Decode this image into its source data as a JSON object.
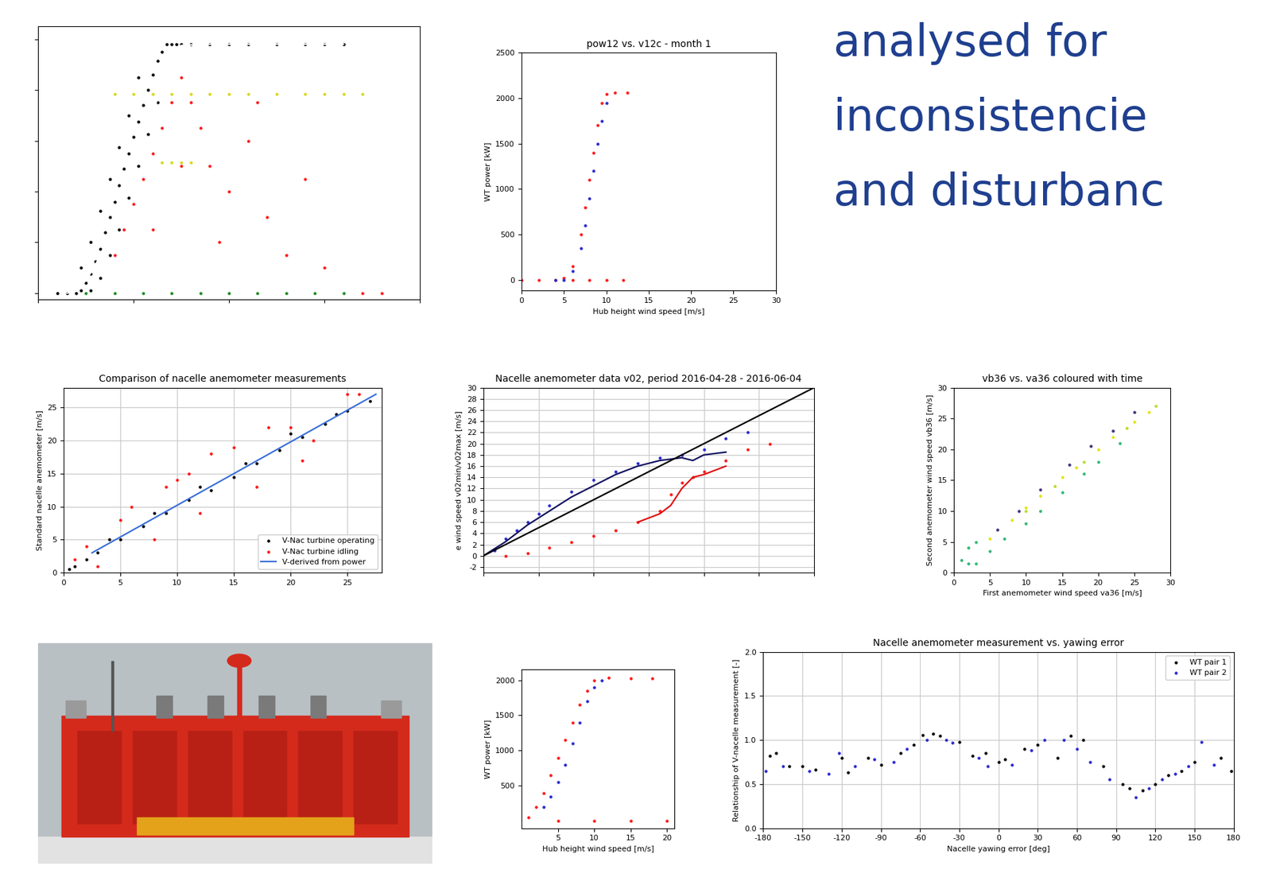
{
  "heading": [
    "analysed for",
    "inconsistencie",
    "and disturbanc"
  ],
  "chart_data": [
    {
      "type": "scatter",
      "marker": "o",
      "tick_labels": false,
      "grid": false,
      "xlim": [
        0,
        40
      ],
      "ylim": [
        -50,
        2100
      ],
      "xticks": [
        0,
        10,
        20,
        30,
        40
      ],
      "yticks": [
        0,
        400,
        800,
        1200,
        1600,
        2000
      ],
      "series": [
        {
          "color": "#000000",
          "x": [
            2,
            3,
            4,
            4.5,
            5,
            5.5,
            6,
            6.5,
            7,
            7.5,
            8,
            8.5,
            9,
            9.5,
            10,
            10.5,
            11,
            11.5,
            12,
            12.5,
            13,
            13.5,
            14,
            14.5,
            15,
            16,
            18,
            20,
            22,
            25,
            28,
            30,
            32,
            5.5,
            6.5,
            7.5,
            8.5,
            9.5,
            10.5,
            11.5,
            12.5,
            4.5,
            5.5,
            6.5,
            7.5,
            8.5,
            9.5,
            10.5
          ],
          "values": [
            0,
            0,
            0,
            20,
            80,
            150,
            250,
            350,
            480,
            600,
            720,
            850,
            980,
            1100,
            1230,
            1350,
            1480,
            1600,
            1720,
            1830,
            1900,
            1960,
            1960,
            1960,
            1960,
            1960,
            1960,
            1960,
            1960,
            1960,
            1960,
            1960,
            1960,
            20,
            120,
            300,
            500,
            750,
            1000,
            1250,
            1500,
            200,
            400,
            650,
            900,
            1150,
            1400,
            1700
          ]
        },
        {
          "color": "#ff1a1a",
          "x": [
            8,
            9,
            10,
            11,
            12,
            13,
            14,
            15,
            16,
            17,
            18,
            20,
            22,
            24,
            26,
            28,
            12,
            15,
            19,
            23,
            30,
            34,
            36
          ],
          "values": [
            300,
            500,
            700,
            900,
            1100,
            1300,
            1500,
            1700,
            1500,
            1300,
            1000,
            800,
            1200,
            600,
            300,
            900,
            500,
            1000,
            400,
            1500,
            200,
            0,
            0
          ]
        },
        {
          "color": "#d8d81e",
          "x": [
            8,
            10,
            12,
            14,
            16,
            18,
            20,
            22,
            25,
            28,
            30,
            32,
            34,
            13,
            14,
            15,
            16
          ],
          "values": [
            1570,
            1570,
            1570,
            1570,
            1570,
            1570,
            1570,
            1570,
            1570,
            1570,
            1570,
            1570,
            1570,
            1030,
            1030,
            1030,
            1030
          ]
        },
        {
          "color": "#1e8c1e",
          "x": [
            5,
            8,
            11,
            14,
            17,
            20,
            23,
            26,
            29,
            32
          ],
          "values": [
            0,
            0,
            0,
            0,
            0,
            0,
            0,
            0,
            0,
            0
          ]
        },
        {
          "type": "line",
          "line_style": "solid",
          "color": "#ffffff",
          "x": [
            3,
            4,
            5,
            6,
            7,
            8,
            9,
            10,
            11,
            12,
            13,
            14,
            15,
            17,
            20,
            25,
            32
          ],
          "values": [
            0,
            20,
            100,
            220,
            380,
            560,
            760,
            980,
            1200,
            1420,
            1640,
            1830,
            1950,
            1960,
            1960,
            1960,
            1960
          ]
        }
      ]
    },
    {
      "type": "scatter",
      "marker": "o",
      "title": "pow12 vs. v12c - month 1",
      "grid": false,
      "x_label": "Hub height wind speed [m/s]",
      "y_label": "WT power [kW]",
      "xlim": [
        0,
        30
      ],
      "ylim": [
        -120,
        2500
      ],
      "xticks": [
        0,
        5,
        10,
        15,
        20,
        25,
        30
      ],
      "yticks": [
        0,
        500,
        1000,
        1500,
        2000,
        2500
      ],
      "series": [
        {
          "color": "#ff1a1a",
          "x": [
            0,
            2,
            4,
            5,
            6,
            7,
            7.5,
            8,
            8.5,
            9,
            9.5,
            10,
            11,
            12.5,
            6,
            8,
            10,
            12
          ],
          "values": [
            0,
            0,
            0,
            20,
            150,
            500,
            800,
            1100,
            1400,
            1700,
            1950,
            2050,
            2060,
            2060,
            0,
            0,
            0,
            0
          ]
        },
        {
          "color": "#2a2ad0",
          "x": [
            4,
            5,
            6,
            7,
            7.5,
            8,
            8.5,
            9,
            9.5,
            10
          ],
          "values": [
            0,
            0,
            100,
            350,
            600,
            900,
            1200,
            1500,
            1750,
            1950
          ]
        }
      ]
    },
    {
      "type": "scatter",
      "marker": "o",
      "grid": false,
      "x_label": "Hub height wind speed [m/s]",
      "y_label": "WT power [kW]",
      "xlim": [
        0,
        21
      ],
      "ylim": [
        -100,
        2150
      ],
      "xticks": [
        5,
        10,
        15,
        20
      ],
      "yticks": [
        500,
        1000,
        1500,
        2000
      ],
      "series": [
        {
          "color": "#ff1a1a",
          "x": [
            1,
            2,
            3,
            4,
            5,
            6,
            7,
            8,
            9,
            10,
            12,
            15,
            18,
            5,
            10,
            15,
            20
          ],
          "values": [
            50,
            200,
            400,
            650,
            900,
            1150,
            1400,
            1650,
            1850,
            2000,
            2030,
            2020,
            2020,
            0,
            0,
            0,
            0
          ]
        },
        {
          "color": "#2a2ad0",
          "x": [
            3,
            4,
            5,
            6,
            7,
            8,
            9,
            10,
            11
          ],
          "values": [
            200,
            350,
            550,
            800,
            1100,
            1400,
            1700,
            1900,
            2000
          ]
        }
      ]
    },
    {
      "type": "scatter",
      "marker": "o",
      "title": "vb36 vs. va36 coloured with time",
      "grid": false,
      "x_label": "First anemometer wind speed va36 [m/s]",
      "y_label": "Second anemometer wind speed vb36 [m/s]",
      "xlim": [
        0,
        30
      ],
      "ylim": [
        0,
        30
      ],
      "xticks": [
        0,
        5,
        10,
        15,
        20,
        25,
        30
      ],
      "yticks": [
        0,
        5,
        10,
        15,
        20,
        25,
        30
      ],
      "series": [
        {
          "color": "#35b779",
          "x": [
            1,
            2,
            3,
            5,
            7,
            10,
            12,
            15,
            18,
            20,
            23,
            2,
            3
          ],
          "values": [
            2,
            1.5,
            1.5,
            3.5,
            5.5,
            8,
            10,
            13,
            16,
            18,
            21,
            4,
            5
          ]
        },
        {
          "color": "#46327e",
          "x": [
            6,
            9,
            12,
            16,
            19,
            22,
            25
          ],
          "values": [
            7,
            10,
            13.5,
            17.5,
            20.5,
            23,
            26
          ]
        },
        {
          "color": "#b5de2b",
          "x": [
            10,
            14,
            18,
            24,
            28
          ],
          "values": [
            10,
            14,
            18,
            23.5,
            27
          ]
        },
        {
          "color": "#e3e418",
          "x": [
            5,
            8,
            10,
            12,
            15,
            17,
            20,
            22,
            25,
            27
          ],
          "values": [
            5.5,
            8.5,
            10.5,
            12.5,
            15.5,
            17,
            20,
            22,
            24.5,
            26
          ]
        }
      ]
    },
    {
      "type": "scatter",
      "marker": "o",
      "title": "Comparison of nacelle anemometer measurements",
      "grid": true,
      "y_label": "Standard nacelle anemometer [m/s]",
      "legend": "lower right",
      "xlim": [
        0,
        28
      ],
      "ylim": [
        0,
        28
      ],
      "xticks": [
        0,
        5,
        10,
        15,
        20,
        25
      ],
      "yticks": [
        0,
        5,
        10,
        15,
        20,
        25
      ],
      "series": [
        {
          "name": "V-Nac turbine operating",
          "color": "#000000",
          "x": [
            0.5,
            1,
            2,
            3,
            5,
            7,
            9,
            11,
            13,
            15,
            17,
            19,
            21,
            23,
            25,
            27,
            4,
            8,
            12,
            16,
            20,
            24
          ],
          "values": [
            0.5,
            1,
            2,
            3,
            5,
            7,
            9,
            11,
            12.5,
            14.5,
            16.5,
            18.5,
            20.5,
            22.5,
            24.5,
            26,
            5,
            9,
            13,
            16.5,
            21,
            24
          ]
        },
        {
          "name": "V-Nac turbine idling",
          "color": "#ff1a1a",
          "x": [
            1,
            2,
            3,
            5,
            6,
            8,
            9,
            10,
            12,
            15,
            17,
            20,
            22,
            25,
            26,
            11,
            13,
            18,
            21
          ],
          "values": [
            2,
            4,
            1,
            8,
            10,
            5,
            13,
            14,
            9,
            19,
            13,
            22,
            20,
            27,
            27,
            15,
            18,
            22,
            17
          ]
        },
        {
          "name": "V-derived from power",
          "type": "line",
          "line_style": "solid",
          "color": "#3a6fd8",
          "x": [
            2.5,
            27.5
          ],
          "values": [
            3,
            27
          ]
        }
      ]
    },
    {
      "type": "scatter",
      "marker": "o",
      "title": "Nacelle anemometer data v02, period 2016-04-28 - 2016-06-04",
      "grid": true,
      "y_label": "e wind speed v02min/v02max [m/s]",
      "tick_labels": "y",
      "xlim": [
        0,
        30
      ],
      "ylim": [
        -3,
        30
      ],
      "xticks": [
        0,
        5,
        10,
        15,
        20,
        25,
        30
      ],
      "yticks": [
        -2,
        0,
        2,
        4,
        6,
        8,
        10,
        12,
        14,
        16,
        18,
        20,
        22,
        24,
        26,
        28,
        30
      ],
      "series": [
        {
          "color": "#2a2ad0",
          "x": [
            1,
            2,
            3,
            4,
            5,
            6,
            8,
            10,
            12,
            14,
            16,
            18,
            20,
            22,
            24
          ],
          "values": [
            1,
            3,
            4.5,
            6,
            7.5,
            9,
            11.5,
            13.5,
            15,
            16.5,
            17.5,
            18,
            19,
            21,
            22
          ]
        },
        {
          "color": "#ff1a1a",
          "x": [
            2,
            4,
            6,
            8,
            10,
            12,
            14,
            16,
            17,
            18,
            19,
            20,
            22,
            24,
            26
          ],
          "values": [
            0,
            0.5,
            1.5,
            2.5,
            3.5,
            4.5,
            6,
            8,
            11,
            13,
            14,
            15,
            17,
            19,
            20
          ]
        },
        {
          "type": "line",
          "line_style": "solid",
          "color": "#101060",
          "x": [
            0,
            2,
            4,
            6,
            8,
            10,
            12,
            14,
            16,
            18,
            19,
            20,
            22
          ],
          "values": [
            0,
            2.5,
            5.5,
            8,
            10.5,
            12.5,
            14.5,
            16,
            17,
            17.5,
            17,
            18,
            18.5
          ]
        },
        {
          "type": "line",
          "line_style": "solid",
          "color": "#e01010",
          "x": [
            14,
            16,
            17,
            18,
            19,
            20,
            22
          ],
          "values": [
            6,
            7.5,
            9,
            12,
            14,
            14.5,
            16
          ]
        },
        {
          "type": "line",
          "line_style": "solid",
          "color": "#000000",
          "x": [
            0,
            30
          ],
          "values": [
            0,
            30
          ]
        }
      ]
    },
    {
      "type": "scatter",
      "marker": "o",
      "title": "Nacelle anemometer measurement vs. yawing error",
      "grid": true,
      "x_label": "Nacelle yawing error [deg]",
      "y_label": "Relationship of V-nacelle measurement [-]",
      "legend": "upper right",
      "xlim": [
        -180,
        180
      ],
      "ylim": [
        0,
        2
      ],
      "xticks": [
        -180,
        -150,
        -120,
        -90,
        -60,
        -30,
        0,
        30,
        60,
        90,
        120,
        150,
        180
      ],
      "yticks": [
        {
          "value": 0,
          "label": "0.0"
        },
        0.5,
        {
          "value": 1,
          "label": "1.0"
        },
        1.5,
        {
          "value": 2,
          "label": "2.0"
        }
      ],
      "series": [
        {
          "name": "WT pair 1",
          "color": "#000000",
          "x": [
            -175,
            -170,
            -160,
            -150,
            -140,
            -120,
            -115,
            -100,
            -90,
            -75,
            -65,
            -58,
            -50,
            -45,
            -30,
            -20,
            -10,
            0,
            5,
            20,
            30,
            45,
            55,
            65,
            80,
            95,
            100,
            110,
            120,
            130,
            140,
            150,
            170,
            178
          ],
          "values": [
            0.82,
            0.85,
            0.7,
            0.7,
            0.66,
            0.8,
            0.63,
            0.8,
            0.72,
            0.85,
            0.95,
            1.06,
            1.07,
            1.05,
            0.98,
            0.82,
            0.85,
            0.75,
            0.78,
            0.9,
            0.95,
            0.8,
            1.05,
            1.0,
            0.7,
            0.5,
            0.45,
            0.43,
            0.5,
            0.6,
            0.65,
            0.75,
            0.8,
            0.65
          ]
        },
        {
          "name": "WT pair 2",
          "color": "#2a2ad0",
          "x": [
            -178,
            -165,
            -145,
            -130,
            -122,
            -110,
            -95,
            -80,
            -70,
            -55,
            -40,
            -35,
            -15,
            -8,
            10,
            25,
            35,
            50,
            60,
            70,
            85,
            105,
            115,
            125,
            135,
            145,
            155,
            165
          ],
          "values": [
            0.65,
            0.7,
            0.65,
            0.62,
            0.85,
            0.7,
            0.78,
            0.75,
            0.9,
            1.0,
            1.0,
            0.97,
            0.8,
            0.7,
            0.72,
            0.88,
            1.0,
            1.0,
            0.9,
            0.75,
            0.55,
            0.35,
            0.45,
            0.55,
            0.62,
            0.7,
            0.98,
            0.72
          ]
        }
      ]
    }
  ]
}
